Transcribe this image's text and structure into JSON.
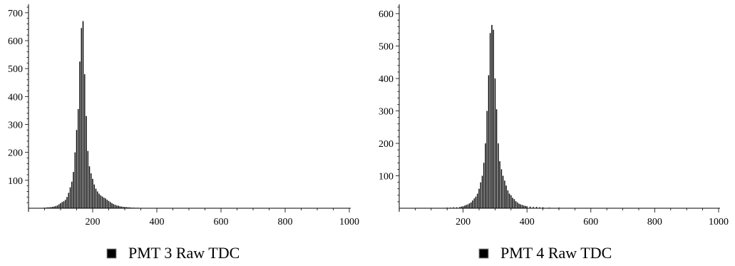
{
  "chart_data": [
    {
      "type": "bar",
      "title": "",
      "legend": {
        "label": "PMT 3 Raw TDC",
        "placement": "bottom"
      },
      "bar_color": "#000000",
      "xlim": [
        0,
        1000
      ],
      "ylim": [
        0,
        720
      ],
      "xticks": [
        200,
        400,
        600,
        800,
        1000
      ],
      "xtick_labels": [
        "200",
        "400",
        "600",
        "800",
        "1000"
      ],
      "yticks": [
        100,
        200,
        300,
        400,
        500,
        600,
        700
      ],
      "ytick_labels": [
        "100",
        "200",
        "300",
        "400",
        "500",
        "600",
        "700"
      ],
      "bin_width": 5,
      "x": [
        40,
        45,
        50,
        55,
        60,
        65,
        70,
        75,
        80,
        85,
        90,
        95,
        100,
        105,
        110,
        115,
        120,
        125,
        130,
        135,
        140,
        145,
        150,
        155,
        160,
        165,
        170,
        175,
        180,
        185,
        190,
        195,
        200,
        205,
        210,
        215,
        220,
        225,
        230,
        235,
        240,
        245,
        250,
        255,
        260,
        265,
        270,
        275,
        280,
        285,
        290,
        295,
        300,
        305,
        310,
        315,
        320,
        325,
        330,
        340,
        350,
        360,
        380,
        400,
        450,
        500
      ],
      "values": [
        1,
        1,
        2,
        2,
        3,
        3,
        4,
        5,
        6,
        8,
        10,
        14,
        18,
        22,
        25,
        30,
        40,
        55,
        75,
        95,
        130,
        200,
        280,
        355,
        525,
        645,
        670,
        480,
        330,
        205,
        150,
        125,
        105,
        85,
        70,
        60,
        52,
        46,
        42,
        38,
        35,
        30,
        26,
        22,
        18,
        15,
        12,
        10,
        9,
        7,
        6,
        5,
        4,
        4,
        3,
        3,
        2,
        2,
        2,
        2,
        1,
        1,
        1,
        1,
        1,
        1
      ]
    },
    {
      "type": "bar",
      "title": "",
      "legend": {
        "label": "PMT 4 Raw TDC",
        "placement": "bottom"
      },
      "bar_color": "#000000",
      "xlim": [
        0,
        1000
      ],
      "ylim": [
        0,
        620
      ],
      "xticks": [
        200,
        400,
        600,
        800,
        1000
      ],
      "xtick_labels": [
        "200",
        "400",
        "600",
        "800",
        "1000"
      ],
      "yticks": [
        100,
        200,
        300,
        400,
        500,
        600
      ],
      "ytick_labels": [
        "100",
        "200",
        "300",
        "400",
        "500",
        "600"
      ],
      "bin_width": 5,
      "x": [
        60,
        80,
        100,
        120,
        140,
        150,
        160,
        170,
        180,
        190,
        195,
        200,
        205,
        210,
        215,
        220,
        225,
        230,
        235,
        240,
        245,
        250,
        255,
        260,
        265,
        270,
        275,
        280,
        285,
        290,
        295,
        300,
        305,
        310,
        315,
        320,
        325,
        330,
        335,
        340,
        345,
        350,
        355,
        360,
        365,
        370,
        375,
        380,
        385,
        390,
        395,
        400,
        410,
        420,
        430,
        440,
        450,
        470,
        500,
        550,
        600
      ],
      "values": [
        1,
        1,
        1,
        1,
        1,
        2,
        2,
        3,
        3,
        4,
        5,
        6,
        8,
        10,
        12,
        15,
        18,
        24,
        30,
        36,
        45,
        60,
        80,
        100,
        140,
        200,
        300,
        410,
        540,
        565,
        550,
        400,
        305,
        200,
        145,
        120,
        100,
        85,
        70,
        55,
        45,
        40,
        32,
        28,
        22,
        18,
        14,
        12,
        10,
        8,
        7,
        6,
        5,
        4,
        4,
        3,
        3,
        2,
        2,
        1,
        1
      ]
    }
  ]
}
